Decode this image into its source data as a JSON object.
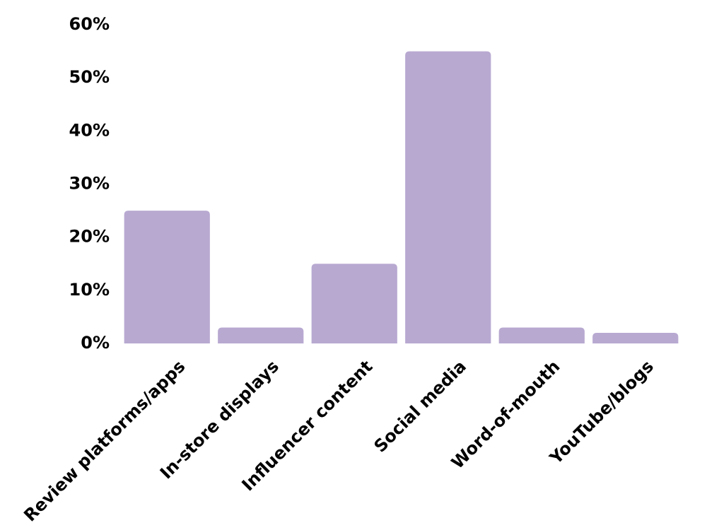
{
  "chart_data": {
    "type": "bar",
    "categories": [
      "Review platforms/apps",
      "In-store displays",
      "Influencer content",
      "Social media",
      "Word-of-mouth",
      "YouTube/blogs"
    ],
    "values": [
      25,
      3,
      15,
      55,
      3,
      2
    ],
    "color": "#b8a9d1",
    "ylim": [
      0,
      60
    ],
    "yticks": [
      {
        "value": 0,
        "label": "0%"
      },
      {
        "value": 10,
        "label": "10%"
      },
      {
        "value": 20,
        "label": "20%"
      },
      {
        "value": 30,
        "label": "30%"
      },
      {
        "value": 40,
        "label": "40%"
      },
      {
        "value": 50,
        "label": "50%"
      },
      {
        "value": 60,
        "label": "60%"
      }
    ]
  }
}
